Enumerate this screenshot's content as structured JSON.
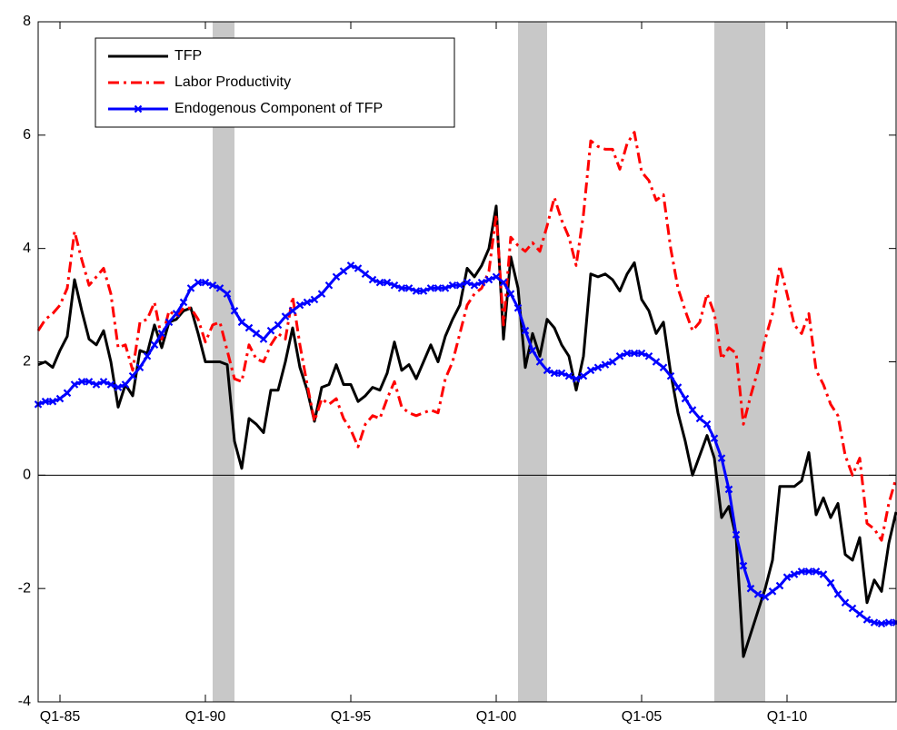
{
  "chart_data": {
    "type": "line",
    "x": [
      1984.25,
      1984.5,
      1984.75,
      1985,
      1985.25,
      1985.5,
      1985.75,
      1986,
      1986.25,
      1986.5,
      1986.75,
      1987,
      1987.25,
      1987.5,
      1987.75,
      1988,
      1988.25,
      1988.5,
      1988.75,
      1989,
      1989.25,
      1989.5,
      1989.75,
      1990,
      1990.25,
      1990.5,
      1990.75,
      1991,
      1991.25,
      1991.5,
      1991.75,
      1992,
      1992.25,
      1992.5,
      1992.75,
      1993,
      1993.25,
      1993.5,
      1993.75,
      1994,
      1994.25,
      1994.5,
      1994.75,
      1995,
      1995.25,
      1995.5,
      1995.75,
      1996,
      1996.25,
      1996.5,
      1996.75,
      1997,
      1997.25,
      1997.5,
      1997.75,
      1998,
      1998.25,
      1998.5,
      1998.75,
      1999,
      1999.25,
      1999.5,
      1999.75,
      2000,
      2000.25,
      2000.5,
      2000.75,
      2001,
      2001.25,
      2001.5,
      2001.75,
      2002,
      2002.25,
      2002.5,
      2002.75,
      2003,
      2003.25,
      2003.5,
      2003.75,
      2004,
      2004.25,
      2004.5,
      2004.75,
      2005,
      2005.25,
      2005.5,
      2005.75,
      2006,
      2006.25,
      2006.5,
      2006.75,
      2007,
      2007.25,
      2007.5,
      2007.75,
      2008,
      2008.25,
      2008.5,
      2008.75,
      2009,
      2009.25,
      2009.5,
      2009.75,
      2010,
      2010.25,
      2010.5,
      2010.75,
      2011,
      2011.25,
      2011.5,
      2011.75,
      2012,
      2012.25,
      2012.5,
      2012.75,
      2013,
      2013.25,
      2013.5,
      2013.75
    ],
    "series": [
      {
        "name": "TFP",
        "color": "#000000",
        "dash": "solid",
        "marker": "none",
        "values": [
          1.95,
          2.0,
          1.9,
          2.2,
          2.45,
          3.45,
          2.9,
          2.4,
          2.3,
          2.55,
          2.0,
          1.2,
          1.6,
          1.4,
          2.2,
          2.15,
          2.65,
          2.25,
          2.7,
          2.75,
          2.9,
          2.95,
          2.5,
          2.0,
          2.0,
          2.0,
          1.95,
          0.6,
          0.12,
          1.0,
          0.9,
          0.75,
          1.5,
          1.5,
          2.0,
          2.6,
          1.9,
          1.5,
          0.95,
          1.55,
          1.6,
          1.95,
          1.6,
          1.6,
          1.3,
          1.4,
          1.55,
          1.5,
          1.8,
          2.35,
          1.85,
          1.95,
          1.7,
          2.0,
          2.3,
          2.0,
          2.45,
          2.75,
          3.0,
          3.65,
          3.5,
          3.7,
          4.0,
          4.75,
          2.4,
          3.85,
          3.3,
          1.9,
          2.5,
          2.1,
          2.75,
          2.6,
          2.3,
          2.1,
          1.5,
          2.1,
          3.55,
          3.5,
          3.55,
          3.45,
          3.25,
          3.55,
          3.75,
          3.1,
          2.9,
          2.5,
          2.7,
          1.8,
          1.1,
          0.6,
          0.0,
          0.35,
          0.7,
          0.3,
          -0.75,
          -0.55,
          -1.1,
          -3.2,
          -2.8,
          -2.4,
          -2.0,
          -1.5,
          -0.2,
          -0.2,
          -0.2,
          -0.1,
          0.4,
          -0.7,
          -0.4,
          -0.75,
          -0.5,
          -1.4,
          -1.5,
          -1.1,
          -2.25,
          -1.85,
          -2.05,
          -1.2,
          -0.65
        ]
      },
      {
        "name": "Labor Productivity",
        "color": "#ff0000",
        "dash": "dashdot",
        "marker": "none",
        "values": [
          2.55,
          2.75,
          2.85,
          3.0,
          3.3,
          4.3,
          3.8,
          3.35,
          3.5,
          3.65,
          3.2,
          2.25,
          2.3,
          1.85,
          2.7,
          2.75,
          3.05,
          2.4,
          2.9,
          2.8,
          2.95,
          2.95,
          2.75,
          2.35,
          2.65,
          2.7,
          2.2,
          1.7,
          1.65,
          2.3,
          2.05,
          2.0,
          2.3,
          2.5,
          2.4,
          3.15,
          2.3,
          1.6,
          0.95,
          1.35,
          1.25,
          1.35,
          1.0,
          0.8,
          0.5,
          0.9,
          1.05,
          1.0,
          1.35,
          1.65,
          1.2,
          1.1,
          1.05,
          1.1,
          1.15,
          1.1,
          1.7,
          2.0,
          2.5,
          3.0,
          3.2,
          3.3,
          3.6,
          4.6,
          2.65,
          4.2,
          4.05,
          3.95,
          4.1,
          3.95,
          4.4,
          4.9,
          4.5,
          4.2,
          3.7,
          4.6,
          5.9,
          5.8,
          5.75,
          5.75,
          5.4,
          5.85,
          6.05,
          5.35,
          5.2,
          4.85,
          4.95,
          4.0,
          3.3,
          2.9,
          2.55,
          2.7,
          3.2,
          2.85,
          2.05,
          2.25,
          2.15,
          0.9,
          1.4,
          1.85,
          2.4,
          2.85,
          3.7,
          3.2,
          2.65,
          2.5,
          2.85,
          1.85,
          1.6,
          1.25,
          1.05,
          0.35,
          0.0,
          0.3,
          -0.85,
          -0.95,
          -1.15,
          -0.5,
          -0.05
        ]
      },
      {
        "name": "Endogenous Component of TFP",
        "color": "#0000ff",
        "dash": "solid",
        "marker": "x",
        "values": [
          1.25,
          1.3,
          1.3,
          1.35,
          1.45,
          1.6,
          1.65,
          1.65,
          1.6,
          1.65,
          1.6,
          1.55,
          1.6,
          1.75,
          1.9,
          2.1,
          2.3,
          2.5,
          2.7,
          2.85,
          3.05,
          3.3,
          3.4,
          3.4,
          3.35,
          3.3,
          3.2,
          2.9,
          2.7,
          2.6,
          2.5,
          2.4,
          2.55,
          2.65,
          2.8,
          2.9,
          3.0,
          3.05,
          3.1,
          3.2,
          3.35,
          3.5,
          3.6,
          3.7,
          3.65,
          3.55,
          3.45,
          3.4,
          3.4,
          3.35,
          3.3,
          3.3,
          3.25,
          3.25,
          3.3,
          3.3,
          3.3,
          3.35,
          3.35,
          3.4,
          3.35,
          3.4,
          3.45,
          3.5,
          3.4,
          3.2,
          2.95,
          2.55,
          2.2,
          2.0,
          1.85,
          1.8,
          1.8,
          1.75,
          1.7,
          1.75,
          1.85,
          1.9,
          1.95,
          2.0,
          2.1,
          2.15,
          2.15,
          2.15,
          2.1,
          2.0,
          1.9,
          1.75,
          1.55,
          1.35,
          1.15,
          1.0,
          0.9,
          0.65,
          0.3,
          -0.25,
          -1.05,
          -1.6,
          -2.0,
          -2.1,
          -2.15,
          -2.05,
          -1.95,
          -1.8,
          -1.75,
          -1.7,
          -1.7,
          -1.7,
          -1.75,
          -1.9,
          -2.1,
          -2.25,
          -2.35,
          -2.45,
          -2.55,
          -2.6,
          -2.62,
          -2.6,
          -2.6
        ]
      }
    ],
    "recessions": [
      [
        1990.25,
        1991.0
      ],
      [
        2000.75,
        2001.75
      ],
      [
        2007.5,
        2009.25
      ]
    ],
    "recession_color": "#c8c8c8",
    "xlim": [
      1984.25,
      2013.75
    ],
    "xticks": [
      {
        "value": 1985,
        "label": "Q1-85"
      },
      {
        "value": 1990,
        "label": "Q1-90"
      },
      {
        "value": 1995,
        "label": "Q1-95"
      },
      {
        "value": 2000,
        "label": "Q1-00"
      },
      {
        "value": 2005,
        "label": "Q1-05"
      },
      {
        "value": 2010,
        "label": "Q1-10"
      }
    ],
    "ylim": [
      -4,
      8
    ],
    "yticks": [
      -4,
      -2,
      0,
      2,
      4,
      6,
      8
    ],
    "zero_line": true,
    "grid": false,
    "legend": "upper left"
  }
}
